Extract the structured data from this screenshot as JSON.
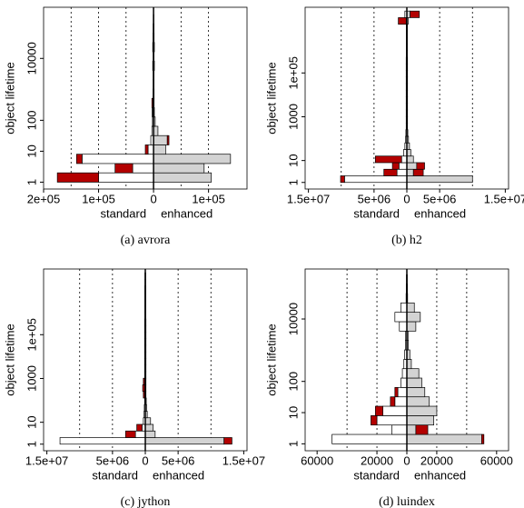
{
  "chart_data": [
    {
      "type": "pyramid",
      "caption": "(a) avrora",
      "ylabel": "object lifetime",
      "xlabel_left": "standard",
      "xlabel_right": "enhanced",
      "log_y": true,
      "standard_color": "#ffffff",
      "enhanced_color": "#d3d3d3",
      "excess_color": "#b30000",
      "xlim": [
        -200000,
        170000
      ],
      "xticks": [
        {
          "value": -200000,
          "label": "2e+05"
        },
        {
          "value": -100000,
          "label": "1e+05"
        },
        0,
        {
          "value": 100000,
          "label": "1e+05"
        }
      ],
      "xgrid": [
        -150000,
        -100000,
        -50000,
        50000,
        100000
      ],
      "ylim": [
        0.6,
        450000
      ],
      "yticks": [
        1,
        10,
        100,
        10000
      ],
      "bins": [
        1,
        2,
        4,
        8,
        16,
        32,
        64,
        128,
        256,
        512,
        1024,
        2048,
        4096,
        8192,
        16384,
        32768,
        65536,
        131072,
        262144
      ],
      "standard": [
        100000,
        38000,
        130000,
        10000,
        5000,
        3000,
        2000,
        1500,
        1000,
        1000,
        800,
        800,
        1500,
        800,
        1500,
        1000,
        800,
        500
      ],
      "standard_excess": [
        75000,
        32000,
        10000,
        5000,
        0,
        0,
        0,
        1000,
        2000,
        0,
        0,
        0,
        0,
        0,
        0,
        0,
        0,
        0
      ],
      "enhanced": [
        105000,
        92000,
        140000,
        22000,
        25000,
        8000,
        3000,
        1500,
        1000,
        1000,
        800,
        800,
        1500,
        800,
        1500,
        1000,
        800,
        500
      ],
      "enhanced_excess": [
        0,
        0,
        0,
        0,
        3000,
        0,
        0,
        0,
        0,
        0,
        0,
        0,
        0,
        0,
        0,
        0,
        0,
        0
      ]
    },
    {
      "type": "pyramid",
      "caption": "(b) h2",
      "ylabel": "object lifetime",
      "xlabel_left": "standard",
      "xlabel_right": "enhanced",
      "log_y": true,
      "standard_color": "#ffffff",
      "enhanced_color": "#d3d3d3",
      "excess_color": "#b30000",
      "xlim": [
        -15500000,
        15500000
      ],
      "xticks": [
        {
          "value": -15000000,
          "label": "1.5e+07"
        },
        {
          "value": -5000000,
          "label": "5e+06"
        },
        0,
        {
          "value": 5000000,
          "label": "5e+06"
        },
        {
          "value": 15000000,
          "label": "1.5e+07"
        }
      ],
      "xgrid": [
        -10000000,
        -5000000,
        5000000,
        10000000
      ],
      "ylim": [
        0.5,
        100000000
      ],
      "yticks": [
        1,
        10,
        1000,
        {
          "value": 100000,
          "label": "1e+05"
        }
      ],
      "bins": [
        1,
        2,
        4,
        8,
        16,
        32,
        64,
        128,
        256,
        512,
        1024,
        2048,
        4096,
        8192,
        16384,
        32768,
        65536,
        131072,
        262144,
        524288,
        1048576,
        2097152,
        4194304,
        8388608,
        16777216,
        33554432,
        67108864
      ],
      "standard": [
        9500000,
        1500000,
        1200000,
        800000,
        500000,
        300000,
        200000,
        150000,
        100000,
        100000,
        100000,
        100000,
        100000,
        100000,
        100000,
        100000,
        100000,
        100000,
        100000,
        80000,
        80000,
        80000,
        80000,
        80000,
        100000,
        300000
      ],
      "standard_excess": [
        600000,
        2000000,
        1000000,
        4000000,
        0,
        0,
        0,
        0,
        0,
        0,
        0,
        0,
        0,
        0,
        0,
        0,
        0,
        0,
        0,
        0,
        0,
        0,
        0,
        0,
        1200000,
        0
      ],
      "enhanced": [
        10000000,
        1000000,
        1500000,
        1000000,
        600000,
        400000,
        250000,
        150000,
        100000,
        100000,
        100000,
        100000,
        100000,
        100000,
        100000,
        100000,
        100000,
        100000,
        100000,
        80000,
        80000,
        80000,
        80000,
        80000,
        200000,
        500000
      ],
      "enhanced_excess": [
        0,
        1500000,
        1200000,
        0,
        0,
        0,
        0,
        0,
        0,
        0,
        0,
        0,
        0,
        0,
        0,
        0,
        0,
        0,
        0,
        0,
        0,
        0,
        0,
        0,
        0,
        1400000
      ]
    },
    {
      "type": "pyramid",
      "caption": "(c) jython",
      "ylabel": "object lifetime",
      "xlabel_left": "standard",
      "xlabel_right": "enhanced",
      "log_y": true,
      "standard_color": "#ffffff",
      "enhanced_color": "#d3d3d3",
      "excess_color": "#b30000",
      "xlim": [
        -15500000,
        15500000
      ],
      "xticks": [
        {
          "value": -15000000,
          "label": "1.5e+07"
        },
        {
          "value": -5000000,
          "label": "5e+06"
        },
        0,
        {
          "value": 5000000,
          "label": "5e+06"
        },
        {
          "value": 15000000,
          "label": "1.5e+07"
        }
      ],
      "xgrid": [
        -10000000,
        -5000000,
        5000000,
        10000000
      ],
      "ylim": [
        0.5,
        100000000
      ],
      "yticks": [
        1,
        10,
        1000,
        {
          "value": 100000,
          "label": "1e+05"
        }
      ],
      "bins": [
        1,
        2,
        4,
        8,
        16,
        32,
        64,
        128,
        256,
        512,
        1024,
        2048,
        4096,
        8192,
        16384,
        32768,
        65536,
        131072,
        262144,
        524288,
        1048576,
        2097152,
        4194304,
        8388608,
        16777216,
        33554432,
        67108864
      ],
      "standard": [
        13000000,
        1500000,
        500000,
        300000,
        200000,
        150000,
        100000,
        100000,
        100000,
        100000,
        100000,
        100000,
        100000,
        100000,
        100000,
        100000,
        100000,
        100000,
        100000,
        80000,
        80000,
        80000,
        80000,
        80000,
        60000,
        60000
      ],
      "standard_excess": [
        0,
        1500000,
        800000,
        0,
        0,
        0,
        0,
        200000,
        300000,
        200000,
        0,
        0,
        0,
        0,
        0,
        0,
        0,
        0,
        0,
        0,
        0,
        0,
        0,
        0,
        0,
        0
      ],
      "enhanced": [
        12000000,
        1500000,
        1200000,
        800000,
        300000,
        200000,
        150000,
        100000,
        100000,
        100000,
        100000,
        100000,
        100000,
        100000,
        100000,
        100000,
        100000,
        100000,
        100000,
        80000,
        80000,
        80000,
        80000,
        80000,
        60000,
        60000
      ],
      "enhanced_excess": [
        1200000,
        0,
        0,
        0,
        0,
        0,
        0,
        0,
        0,
        0,
        0,
        0,
        0,
        0,
        0,
        0,
        0,
        0,
        0,
        0,
        0,
        0,
        0,
        0,
        0,
        0
      ]
    },
    {
      "type": "pyramid",
      "caption": "(d) luindex",
      "ylabel": "object lifetime",
      "xlabel_left": "standard",
      "xlabel_right": "enhanced",
      "log_y": true,
      "standard_color": "#ffffff",
      "enhanced_color": "#d3d3d3",
      "excess_color": "#b30000",
      "xlim": [
        -68000,
        68000
      ],
      "xticks": [
        {
          "value": -60000,
          "label": "60000"
        },
        {
          "value": -20000,
          "label": "20000"
        },
        0,
        20000,
        60000
      ],
      "xgrid": [
        -40000,
        -20000,
        20000,
        40000
      ],
      "ylim": [
        0.6,
        400000
      ],
      "yticks": [
        1,
        10,
        100,
        10000
      ],
      "bins": [
        1,
        2,
        4,
        8,
        16,
        32,
        64,
        128,
        256,
        512,
        1024,
        2048,
        4096,
        8192,
        16384,
        32768,
        65536,
        131072,
        262144
      ],
      "standard": [
        50000,
        10000,
        20000,
        16000,
        8000,
        6000,
        4000,
        3000,
        2000,
        1500,
        1000,
        800,
        5000,
        8000,
        4000,
        500,
        400,
        300
      ],
      "standard_excess": [
        0,
        0,
        4000,
        5000,
        3000,
        2000,
        0,
        0,
        0,
        0,
        0,
        0,
        0,
        0,
        0,
        0,
        0,
        0
      ],
      "enhanced": [
        50000,
        6000,
        18000,
        20000,
        15000,
        12000,
        10000,
        8000,
        3000,
        2000,
        1000,
        800,
        6000,
        9000,
        5000,
        500,
        400,
        300
      ],
      "enhanced_excess": [
        1500,
        8000,
        0,
        0,
        0,
        0,
        0,
        0,
        0,
        0,
        0,
        0,
        0,
        0,
        0,
        0,
        0,
        0
      ]
    }
  ]
}
